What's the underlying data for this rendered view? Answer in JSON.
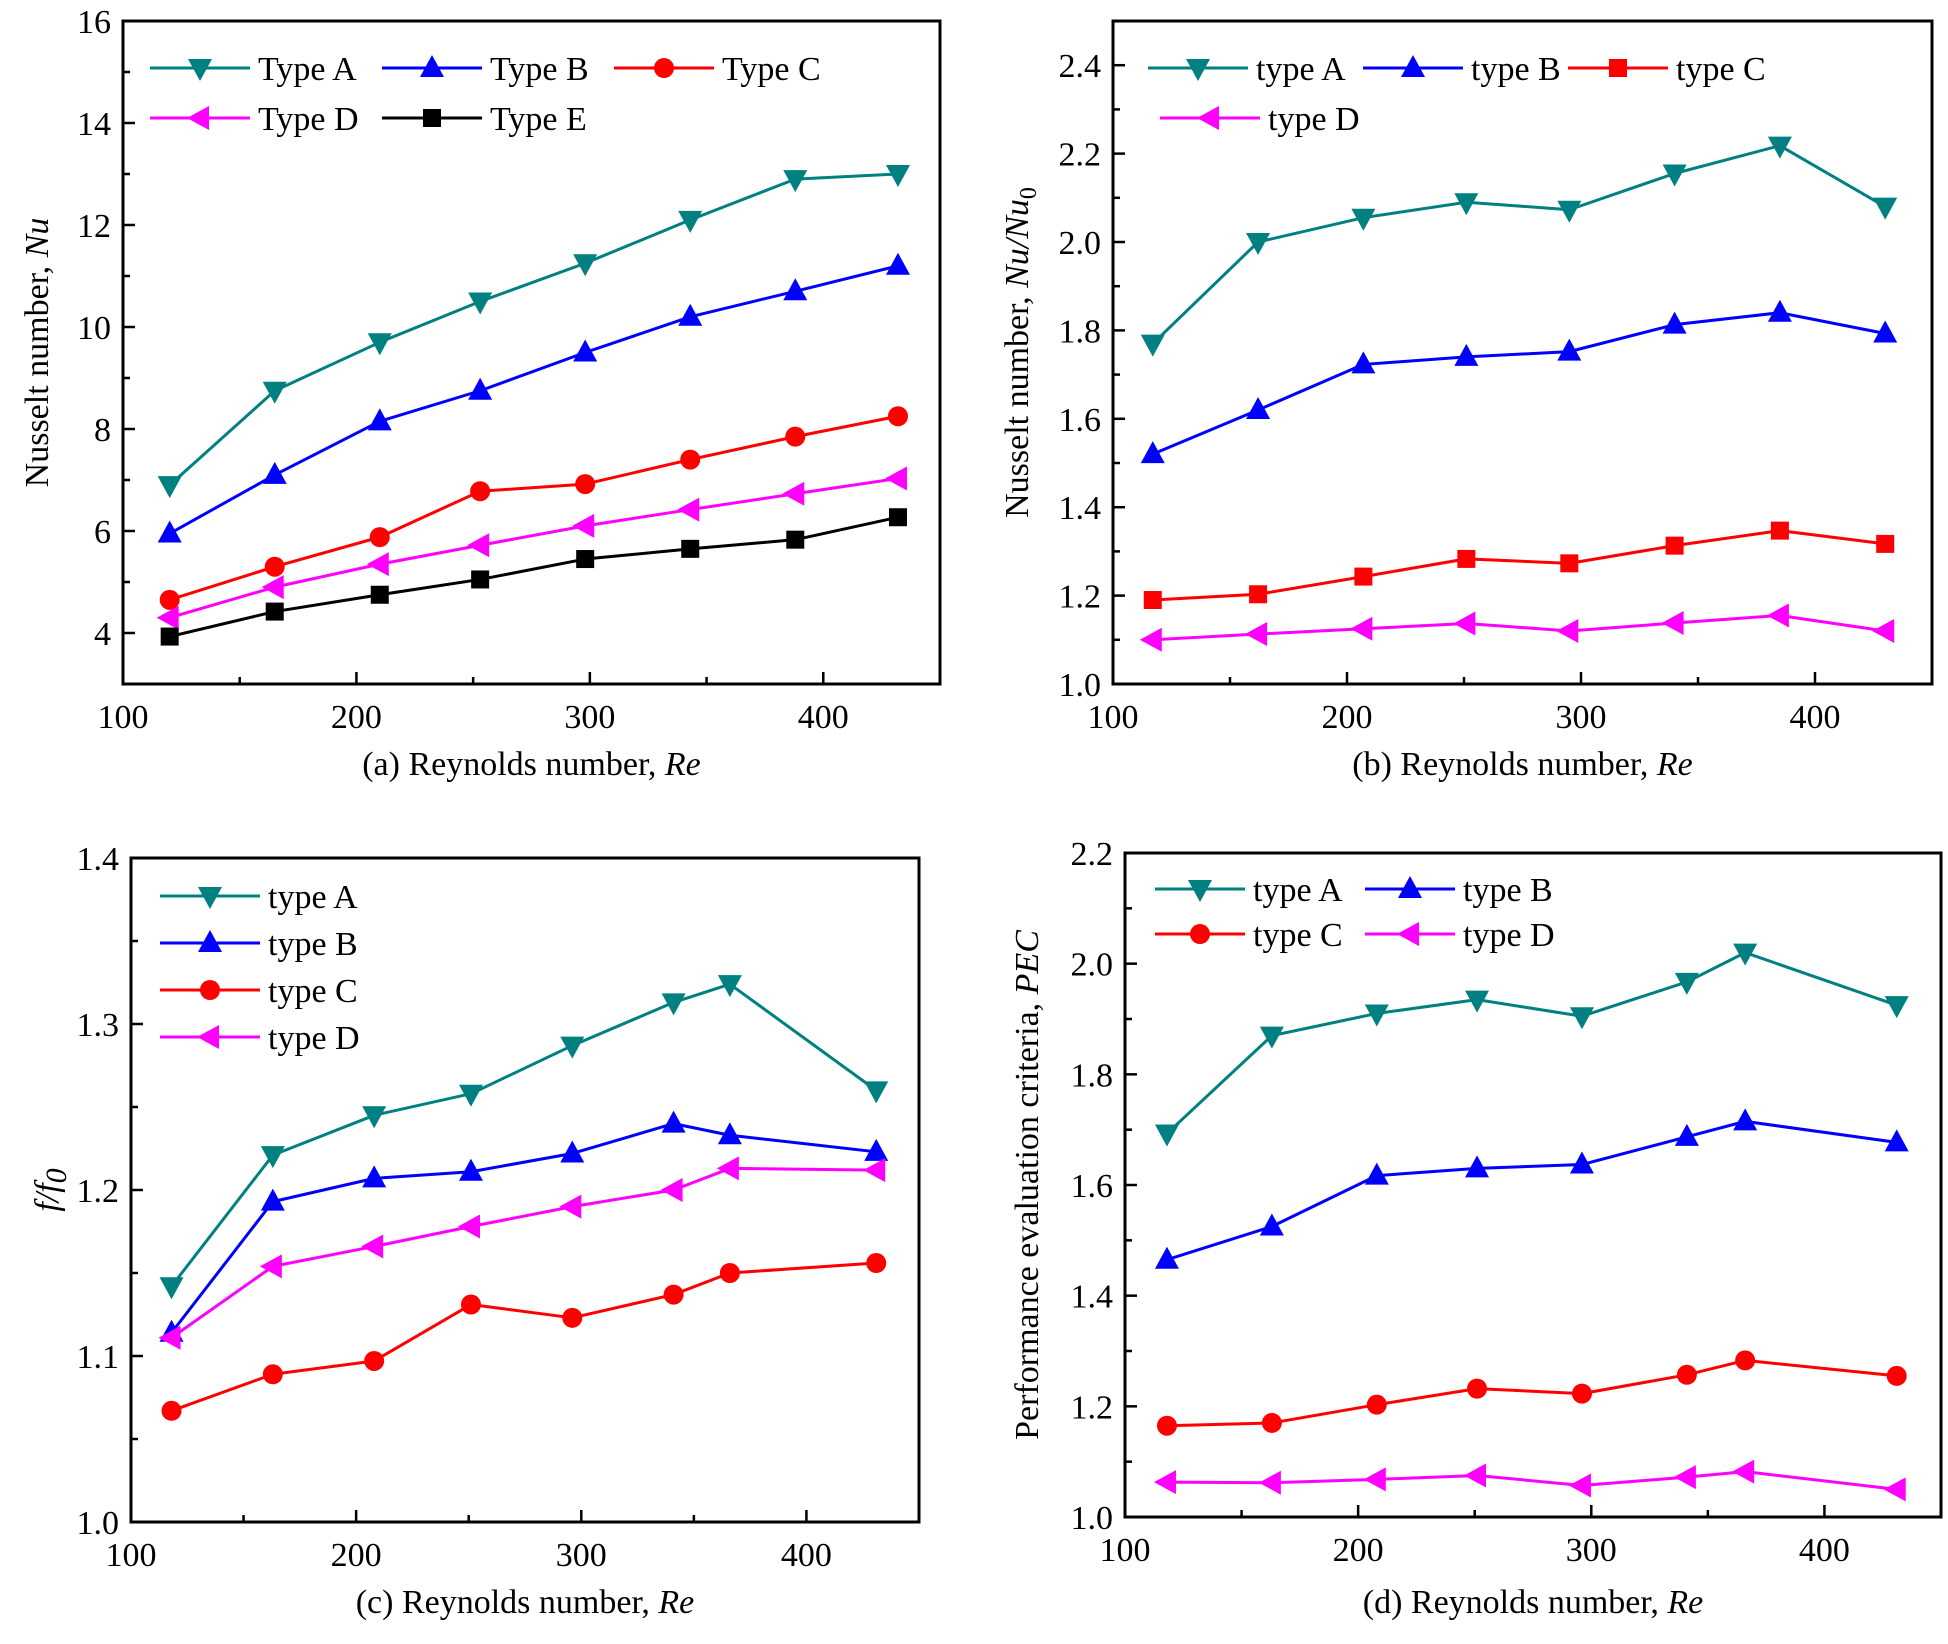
{
  "figure": {
    "panels": [
      "a",
      "b",
      "c",
      "d"
    ]
  },
  "chart_data": [
    {
      "id": "a",
      "type": "line",
      "title": "",
      "xlabel": "(a) Reynolds number, ",
      "xlabel_italic": "Re",
      "ylabel": "Nusselt number, ",
      "ylabel_italic": "Nu",
      "ylabel_sub": "",
      "xlim": [
        100,
        450
      ],
      "ylim": [
        3,
        16
      ],
      "xticks": [
        100,
        200,
        300,
        400
      ],
      "xminor": [
        150,
        250,
        350
      ],
      "yticks": [
        4,
        6,
        8,
        10,
        12,
        14,
        16
      ],
      "yminor": [
        5,
        7,
        9,
        11,
        13,
        15
      ],
      "ytick_decimals": 0,
      "grid": false,
      "legend_position": "top-left",
      "legend_layout": [
        [
          "Type A",
          "Type B",
          "Type C"
        ],
        [
          "Type D",
          "Type E"
        ]
      ],
      "series": [
        {
          "name": "Type A",
          "color": "#008080",
          "marker": "triangle-down",
          "x": [
            120,
            165,
            210,
            253,
            298,
            343,
            388,
            432
          ],
          "values": [
            6.9,
            8.75,
            9.7,
            10.5,
            11.25,
            12.1,
            12.9,
            13.0
          ]
        },
        {
          "name": "Type B",
          "color": "#0000FF",
          "marker": "triangle-up",
          "x": [
            120,
            165,
            210,
            253,
            298,
            343,
            388,
            432
          ],
          "values": [
            5.95,
            7.1,
            8.15,
            8.75,
            9.5,
            10.2,
            10.7,
            11.2
          ]
        },
        {
          "name": "Type C",
          "color": "#FF0000",
          "marker": "circle",
          "x": [
            120,
            165,
            210,
            253,
            298,
            343,
            388,
            432
          ],
          "values": [
            4.65,
            5.3,
            5.88,
            6.78,
            6.92,
            7.4,
            7.85,
            8.25
          ]
        },
        {
          "name": "Type D",
          "color": "#FF00FF",
          "marker": "triangle-left",
          "x": [
            120,
            165,
            210,
            253,
            298,
            343,
            388,
            432
          ],
          "values": [
            4.3,
            4.9,
            5.35,
            5.72,
            6.1,
            6.42,
            6.73,
            7.03
          ]
        },
        {
          "name": "Type E",
          "color": "#000000",
          "marker": "square",
          "x": [
            120,
            165,
            210,
            253,
            298,
            343,
            388,
            432
          ],
          "values": [
            3.93,
            4.42,
            4.75,
            5.05,
            5.45,
            5.65,
            5.83,
            6.27
          ]
        }
      ]
    },
    {
      "id": "b",
      "type": "line",
      "title": "",
      "xlabel": "(b) Reynolds number, ",
      "xlabel_italic": "Re",
      "ylabel": "Nusselt number, ",
      "ylabel_italic": "Nu/Nu",
      "ylabel_sub": "0",
      "xlim": [
        100,
        450
      ],
      "ylim": [
        1.0,
        2.5
      ],
      "xticks": [
        100,
        200,
        300,
        400
      ],
      "xminor": [
        150,
        250,
        350
      ],
      "yticks": [
        1.0,
        1.2,
        1.4,
        1.6,
        1.8,
        2.0,
        2.2,
        2.4
      ],
      "yminor": [
        1.1,
        1.3,
        1.5,
        1.7,
        1.9,
        2.1,
        2.3,
        2.5
      ],
      "ytick_decimals": 1,
      "grid": false,
      "legend_position": "top-left",
      "legend_layout": [
        [
          "type A",
          "type B",
          "type C"
        ],
        [
          "type D"
        ]
      ],
      "series": [
        {
          "name": "type A",
          "color": "#008080",
          "marker": "triangle-down",
          "x": [
            117,
            162,
            207,
            251,
            295,
            340,
            385,
            430
          ],
          "values": [
            1.77,
            2.0,
            2.055,
            2.09,
            2.073,
            2.155,
            2.218,
            2.08
          ]
        },
        {
          "name": "type B",
          "color": "#0000FF",
          "marker": "triangle-up",
          "x": [
            117,
            162,
            207,
            251,
            295,
            340,
            385,
            430
          ],
          "values": [
            1.52,
            1.62,
            1.723,
            1.74,
            1.752,
            1.813,
            1.84,
            1.793
          ]
        },
        {
          "name": "type C",
          "color": "#FF0000",
          "marker": "square",
          "x": [
            117,
            162,
            207,
            251,
            295,
            340,
            385,
            430
          ],
          "values": [
            1.19,
            1.203,
            1.243,
            1.283,
            1.273,
            1.313,
            1.347,
            1.317
          ]
        },
        {
          "name": "type D",
          "color": "#FF00FF",
          "marker": "triangle-left",
          "x": [
            117,
            162,
            207,
            251,
            295,
            340,
            385,
            430
          ],
          "values": [
            1.1,
            1.113,
            1.125,
            1.137,
            1.12,
            1.138,
            1.155,
            1.12
          ]
        }
      ]
    },
    {
      "id": "c",
      "type": "line",
      "title": "",
      "xlabel": "(c) Reynolds number, ",
      "xlabel_italic": "Re",
      "ylabel": "",
      "ylabel_italic": "f/f",
      "ylabel_sub": "0",
      "xlim": [
        100,
        450
      ],
      "ylim": [
        1.0,
        1.4
      ],
      "xticks": [
        100,
        200,
        300,
        400
      ],
      "xminor": [
        150,
        250,
        350
      ],
      "yticks": [
        1.0,
        1.1,
        1.2,
        1.3,
        1.4
      ],
      "yminor": [
        1.05,
        1.15,
        1.25,
        1.35
      ],
      "ytick_decimals": 1,
      "grid": false,
      "legend_position": "top-left",
      "legend_layout": [
        [
          "type A"
        ],
        [
          "type B"
        ],
        [
          "type C"
        ],
        [
          "type D"
        ]
      ],
      "series": [
        {
          "name": "type A",
          "color": "#008080",
          "marker": "triangle-down",
          "x": [
            118,
            163,
            208,
            251,
            296,
            341,
            366,
            431
          ],
          "values": [
            1.142,
            1.221,
            1.245,
            1.258,
            1.287,
            1.313,
            1.324,
            1.26
          ]
        },
        {
          "name": "type B",
          "color": "#0000FF",
          "marker": "triangle-up",
          "x": [
            118,
            163,
            208,
            251,
            296,
            341,
            366,
            431
          ],
          "values": [
            1.114,
            1.193,
            1.207,
            1.211,
            1.222,
            1.24,
            1.233,
            1.223
          ]
        },
        {
          "name": "type C",
          "color": "#FF0000",
          "marker": "circle",
          "x": [
            118,
            163,
            208,
            251,
            296,
            341,
            366,
            431
          ],
          "values": [
            1.067,
            1.089,
            1.097,
            1.131,
            1.123,
            1.137,
            1.15,
            1.156
          ]
        },
        {
          "name": "type D",
          "color": "#FF00FF",
          "marker": "triangle-left",
          "x": [
            118,
            163,
            208,
            251,
            296,
            341,
            366,
            431
          ],
          "values": [
            1.111,
            1.154,
            1.166,
            1.178,
            1.19,
            1.2,
            1.213,
            1.212
          ]
        }
      ]
    },
    {
      "id": "d",
      "type": "line",
      "title": "",
      "xlabel": "(d) Reynolds number, ",
      "xlabel_italic": "Re",
      "ylabel": "Performance evaluation criteria, ",
      "ylabel_italic": "PEC",
      "ylabel_sub": "",
      "xlim": [
        100,
        450
      ],
      "ylim": [
        1.0,
        2.2
      ],
      "xticks": [
        100,
        200,
        300,
        400
      ],
      "xminor": [
        150,
        250,
        350
      ],
      "yticks": [
        1.0,
        1.2,
        1.4,
        1.6,
        1.8,
        2.0,
        2.2
      ],
      "yminor": [
        1.1,
        1.3,
        1.5,
        1.7,
        1.9,
        2.1
      ],
      "ytick_decimals": 1,
      "grid": false,
      "legend_position": "top-left",
      "legend_layout": [
        [
          "type A",
          "type B"
        ],
        [
          "type C",
          "type D"
        ]
      ],
      "series": [
        {
          "name": "type A",
          "color": "#008080",
          "marker": "triangle-down",
          "x": [
            118,
            163,
            208,
            251,
            296,
            341,
            366,
            431
          ],
          "values": [
            1.693,
            1.87,
            1.91,
            1.935,
            1.905,
            1.967,
            2.02,
            1.925
          ]
        },
        {
          "name": "type B",
          "color": "#0000FF",
          "marker": "triangle-up",
          "x": [
            118,
            163,
            208,
            251,
            296,
            341,
            366,
            431
          ],
          "values": [
            1.465,
            1.525,
            1.617,
            1.63,
            1.637,
            1.687,
            1.715,
            1.677
          ]
        },
        {
          "name": "type C",
          "color": "#FF0000",
          "marker": "circle",
          "x": [
            118,
            163,
            208,
            251,
            296,
            341,
            366,
            431
          ],
          "values": [
            1.165,
            1.17,
            1.203,
            1.232,
            1.223,
            1.257,
            1.283,
            1.255
          ]
        },
        {
          "name": "type D",
          "color": "#FF00FF",
          "marker": "triangle-left",
          "x": [
            118,
            163,
            208,
            251,
            296,
            341,
            366,
            431
          ],
          "values": [
            1.063,
            1.062,
            1.068,
            1.075,
            1.057,
            1.072,
            1.082,
            1.05
          ]
        }
      ]
    }
  ]
}
